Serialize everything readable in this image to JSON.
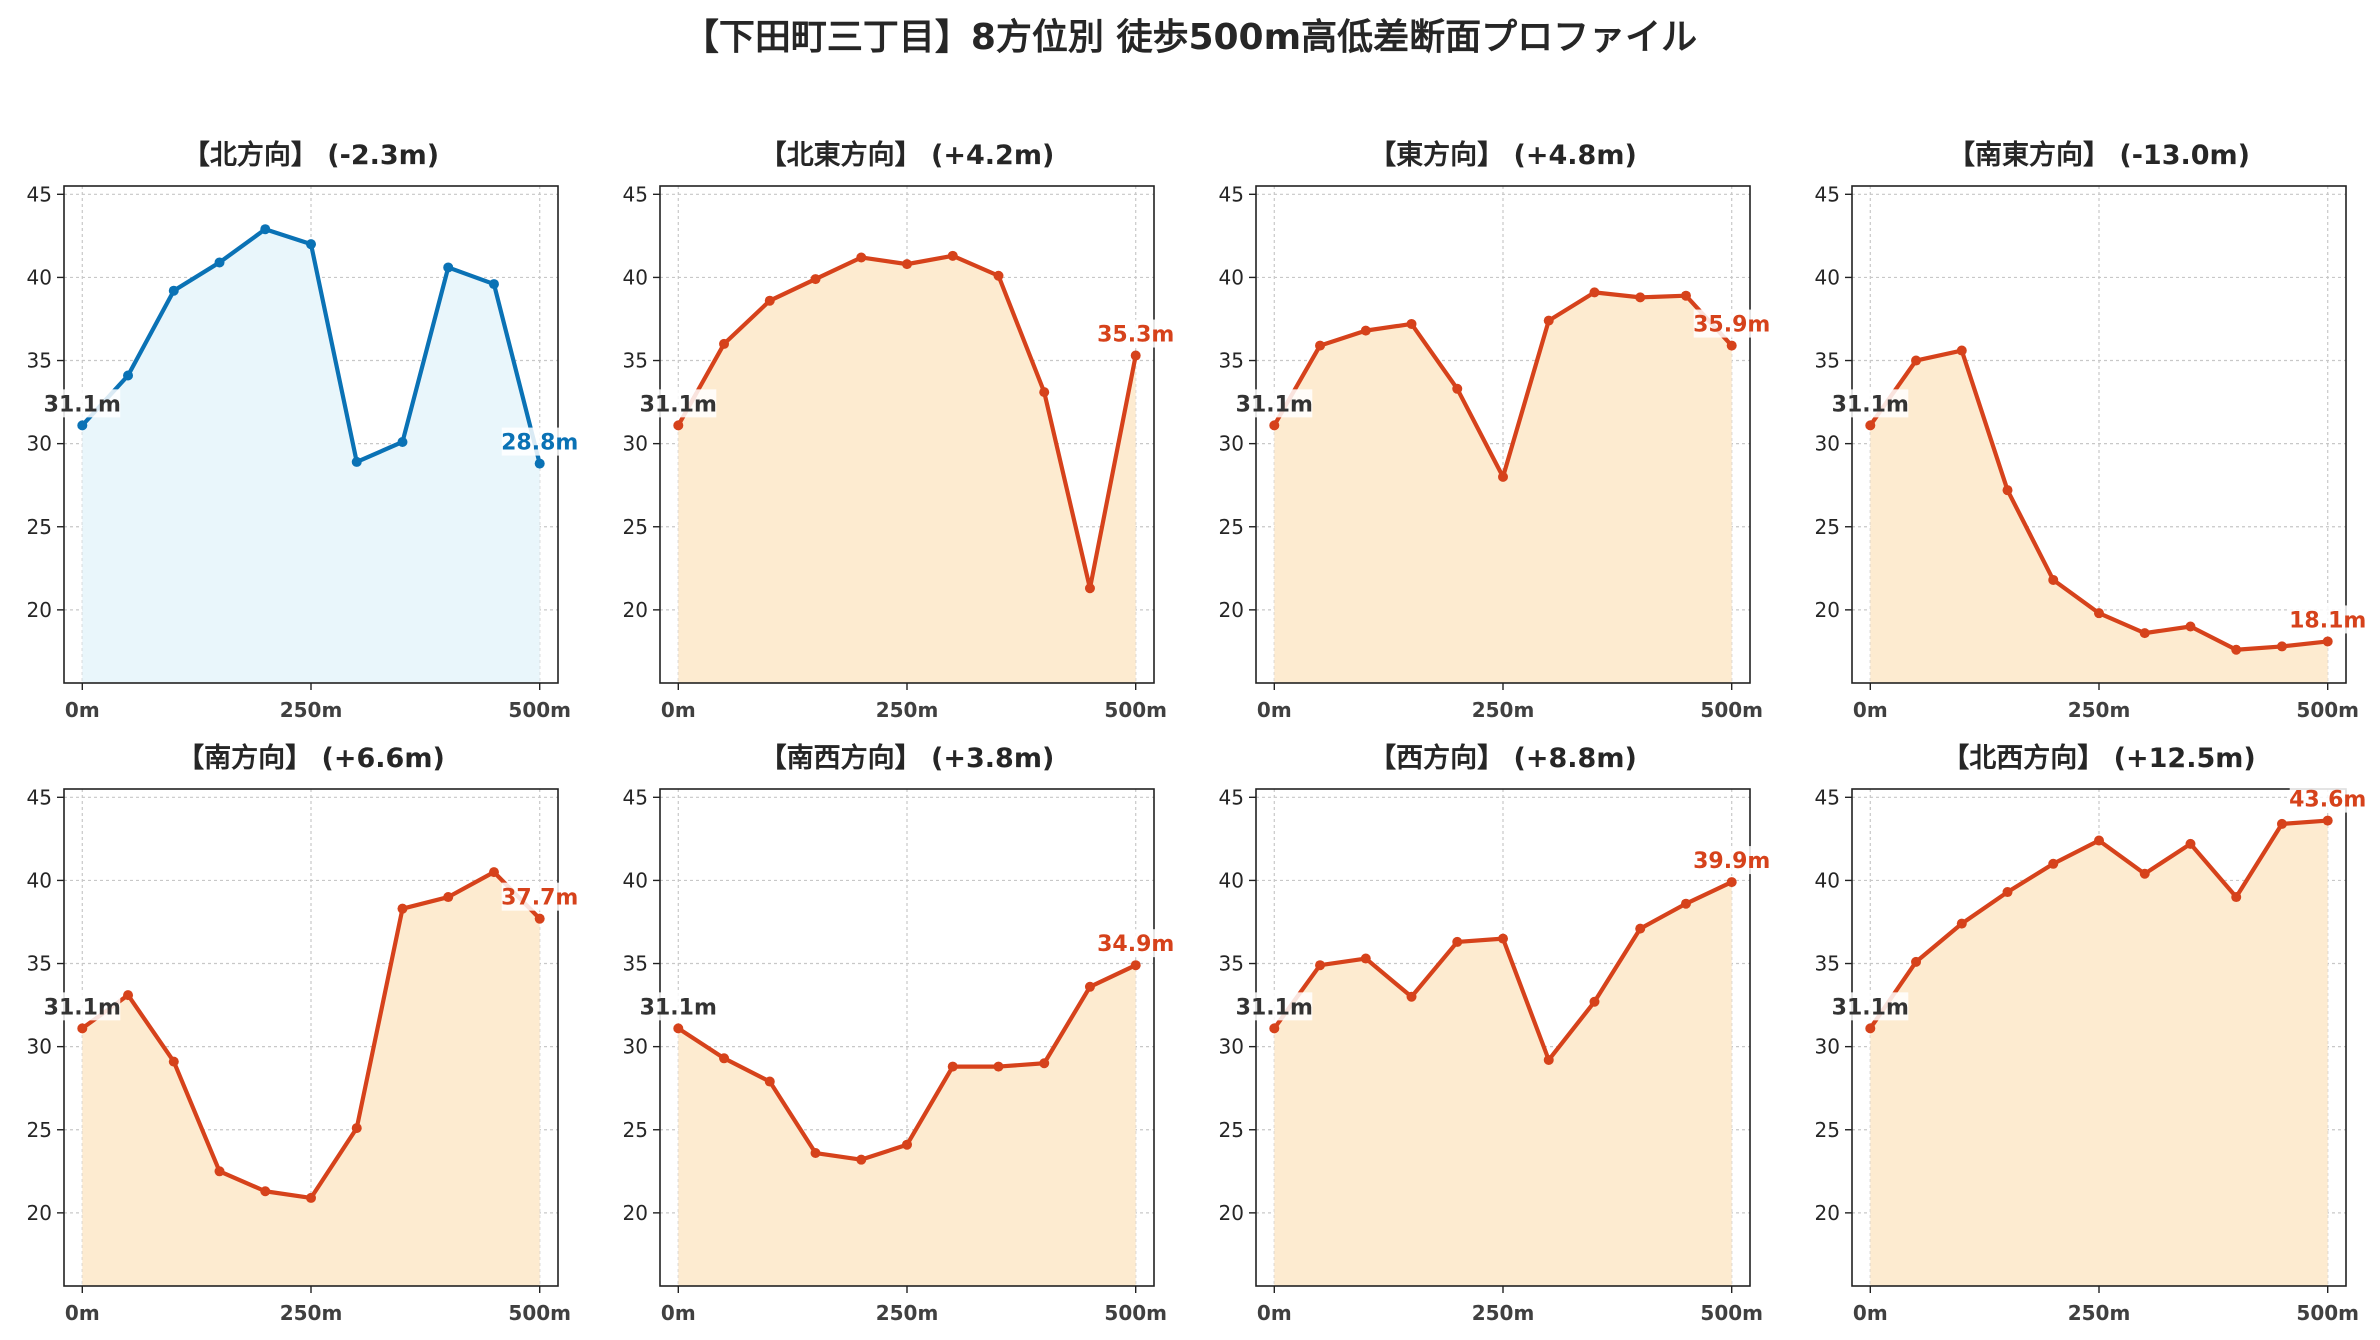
{
  "title": "【下田町三丁目】8方位別 徒歩500m高低差断面プロファイル",
  "chart_data": [
    {
      "type": "area",
      "title": "【北方向】 (-2.3m)",
      "color": "#0a72b5",
      "fill": "#e9f6fb",
      "x": [
        0,
        50,
        100,
        150,
        200,
        250,
        300,
        350,
        400,
        450,
        500
      ],
      "values": [
        31.1,
        34.1,
        39.2,
        40.9,
        42.9,
        42.0,
        28.9,
        30.1,
        40.6,
        39.6,
        28.8
      ],
      "start_label": "31.1m",
      "end_label": "28.8m"
    },
    {
      "type": "area",
      "title": "【北東方向】 (+4.2m)",
      "color": "#d6421b",
      "fill": "#fdebd0",
      "x": [
        0,
        50,
        100,
        150,
        200,
        250,
        300,
        350,
        400,
        450,
        500
      ],
      "values": [
        31.1,
        36.0,
        38.6,
        39.9,
        41.2,
        40.8,
        41.3,
        40.1,
        33.1,
        21.3,
        35.3
      ],
      "start_label": "31.1m",
      "end_label": "35.3m"
    },
    {
      "type": "area",
      "title": "【東方向】 (+4.8m)",
      "color": "#d6421b",
      "fill": "#fdebd0",
      "x": [
        0,
        50,
        100,
        150,
        200,
        250,
        300,
        350,
        400,
        450,
        500
      ],
      "values": [
        31.1,
        35.9,
        36.8,
        37.2,
        33.3,
        28.0,
        37.4,
        39.1,
        38.8,
        38.9,
        35.9
      ],
      "start_label": "31.1m",
      "end_label": "35.9m"
    },
    {
      "type": "area",
      "title": "【南東方向】 (-13.0m)",
      "color": "#d6421b",
      "fill": "#fdebd0",
      "x": [
        0,
        50,
        100,
        150,
        200,
        250,
        300,
        350,
        400,
        450,
        500
      ],
      "values": [
        31.1,
        35.0,
        35.6,
        27.2,
        21.8,
        19.8,
        18.6,
        19.0,
        17.6,
        17.8,
        18.1
      ],
      "start_label": "31.1m",
      "end_label": "18.1m"
    },
    {
      "type": "area",
      "title": "【南方向】 (+6.6m)",
      "color": "#d6421b",
      "fill": "#fdebd0",
      "x": [
        0,
        50,
        100,
        150,
        200,
        250,
        300,
        350,
        400,
        450,
        500
      ],
      "values": [
        31.1,
        33.1,
        29.1,
        22.5,
        21.3,
        20.9,
        25.1,
        38.3,
        39.0,
        40.5,
        37.7
      ],
      "start_label": "31.1m",
      "end_label": "37.7m"
    },
    {
      "type": "area",
      "title": "【南西方向】 (+3.8m)",
      "color": "#d6421b",
      "fill": "#fdebd0",
      "x": [
        0,
        50,
        100,
        150,
        200,
        250,
        300,
        350,
        400,
        450,
        500
      ],
      "values": [
        31.1,
        29.3,
        27.9,
        23.6,
        23.2,
        24.1,
        28.8,
        28.8,
        29.0,
        33.6,
        34.9
      ],
      "start_label": "31.1m",
      "end_label": "34.9m"
    },
    {
      "type": "area",
      "title": "【西方向】 (+8.8m)",
      "color": "#d6421b",
      "fill": "#fdebd0",
      "x": [
        0,
        50,
        100,
        150,
        200,
        250,
        300,
        350,
        400,
        450,
        500
      ],
      "values": [
        31.1,
        34.9,
        35.3,
        33.0,
        36.3,
        36.5,
        29.2,
        32.7,
        37.1,
        38.6,
        39.9
      ],
      "start_label": "31.1m",
      "end_label": "39.9m"
    },
    {
      "type": "area",
      "title": "【北西方向】 (+12.5m)",
      "color": "#d6421b",
      "fill": "#fdebd0",
      "x": [
        0,
        50,
        100,
        150,
        200,
        250,
        300,
        350,
        400,
        450,
        500
      ],
      "values": [
        31.1,
        35.1,
        37.4,
        39.3,
        41.0,
        42.4,
        40.4,
        42.2,
        39.0,
        43.4,
        43.6
      ],
      "start_label": "31.1m",
      "end_label": "43.6m"
    }
  ],
  "axes": {
    "ylim": [
      15.6,
      45.5
    ],
    "xlim": [
      -20,
      520
    ],
    "yticks": [
      20,
      25,
      30,
      35,
      40,
      45
    ],
    "xticks": [
      0,
      250,
      500
    ],
    "xtick_labels": [
      "0m",
      "250m",
      "500m"
    ],
    "grid": true
  },
  "colors": {
    "start_label": "#333333"
  }
}
